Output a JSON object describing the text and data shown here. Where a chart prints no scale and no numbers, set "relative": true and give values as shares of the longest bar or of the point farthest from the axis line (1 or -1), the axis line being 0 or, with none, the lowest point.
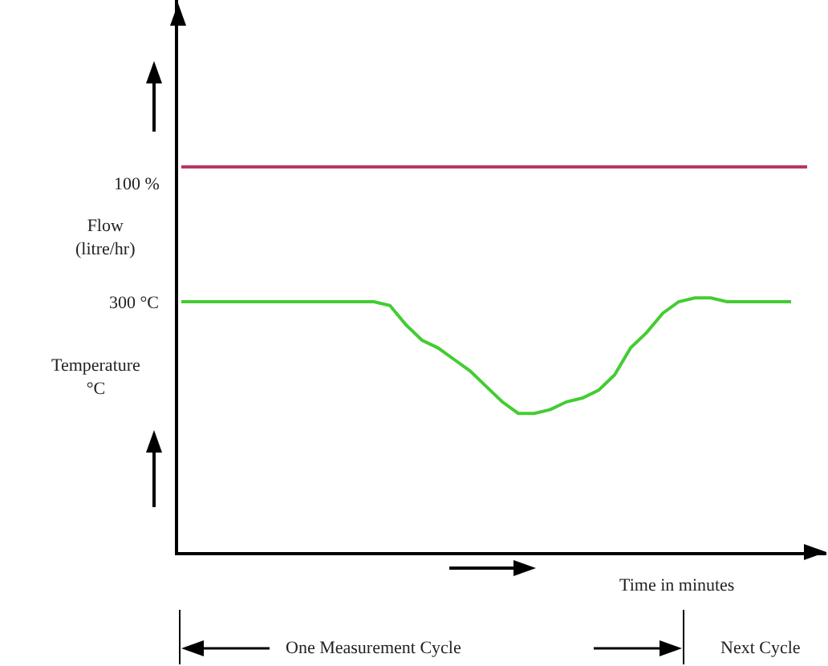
{
  "chart_data": {
    "type": "line",
    "relative": true,
    "tick_labels": false,
    "xlabel": "Time in minutes",
    "categories": [
      null,
      null,
      null,
      null,
      null,
      null,
      null,
      null,
      null,
      null,
      null,
      null,
      null,
      null,
      null,
      null,
      null,
      null,
      null,
      null,
      null,
      null,
      null,
      null,
      null,
      null,
      null,
      null,
      null,
      null,
      null,
      null,
      null,
      null,
      null,
      null,
      null,
      null,
      null,
      null
    ],
    "series": [
      {
        "color": "#b8385e",
        "values": [
          1,
          1,
          1,
          1,
          1,
          1,
          1,
          1,
          1,
          1,
          1,
          1,
          1,
          1,
          1,
          1,
          1,
          1,
          1,
          1,
          1,
          1,
          1,
          1,
          1,
          1,
          1,
          1,
          1,
          1,
          1,
          1,
          1,
          1,
          1,
          1,
          1,
          1,
          1,
          1
        ]
      },
      {
        "color": "#44cc33",
        "values": [
          0.65,
          0.65,
          0.65,
          0.65,
          0.65,
          0.65,
          0.65,
          0.65,
          0.65,
          0.65,
          0.65,
          0.65,
          0.65,
          0.64,
          0.59,
          0.55,
          0.53,
          0.5,
          0.47,
          0.43,
          0.39,
          0.36,
          0.36,
          0.37,
          0.39,
          0.4,
          0.42,
          0.46,
          0.53,
          0.57,
          0.62,
          0.65,
          0.66,
          0.66,
          0.65,
          0.65,
          0.65,
          0.65,
          0.65,
          null
        ]
      }
    ],
    "annotations": [
      "100 %",
      "Flow\n(litre/hr)",
      "300 °C",
      "Temperature\n°C",
      "One Measurement Cycle",
      "Next Cycle"
    ]
  }
}
